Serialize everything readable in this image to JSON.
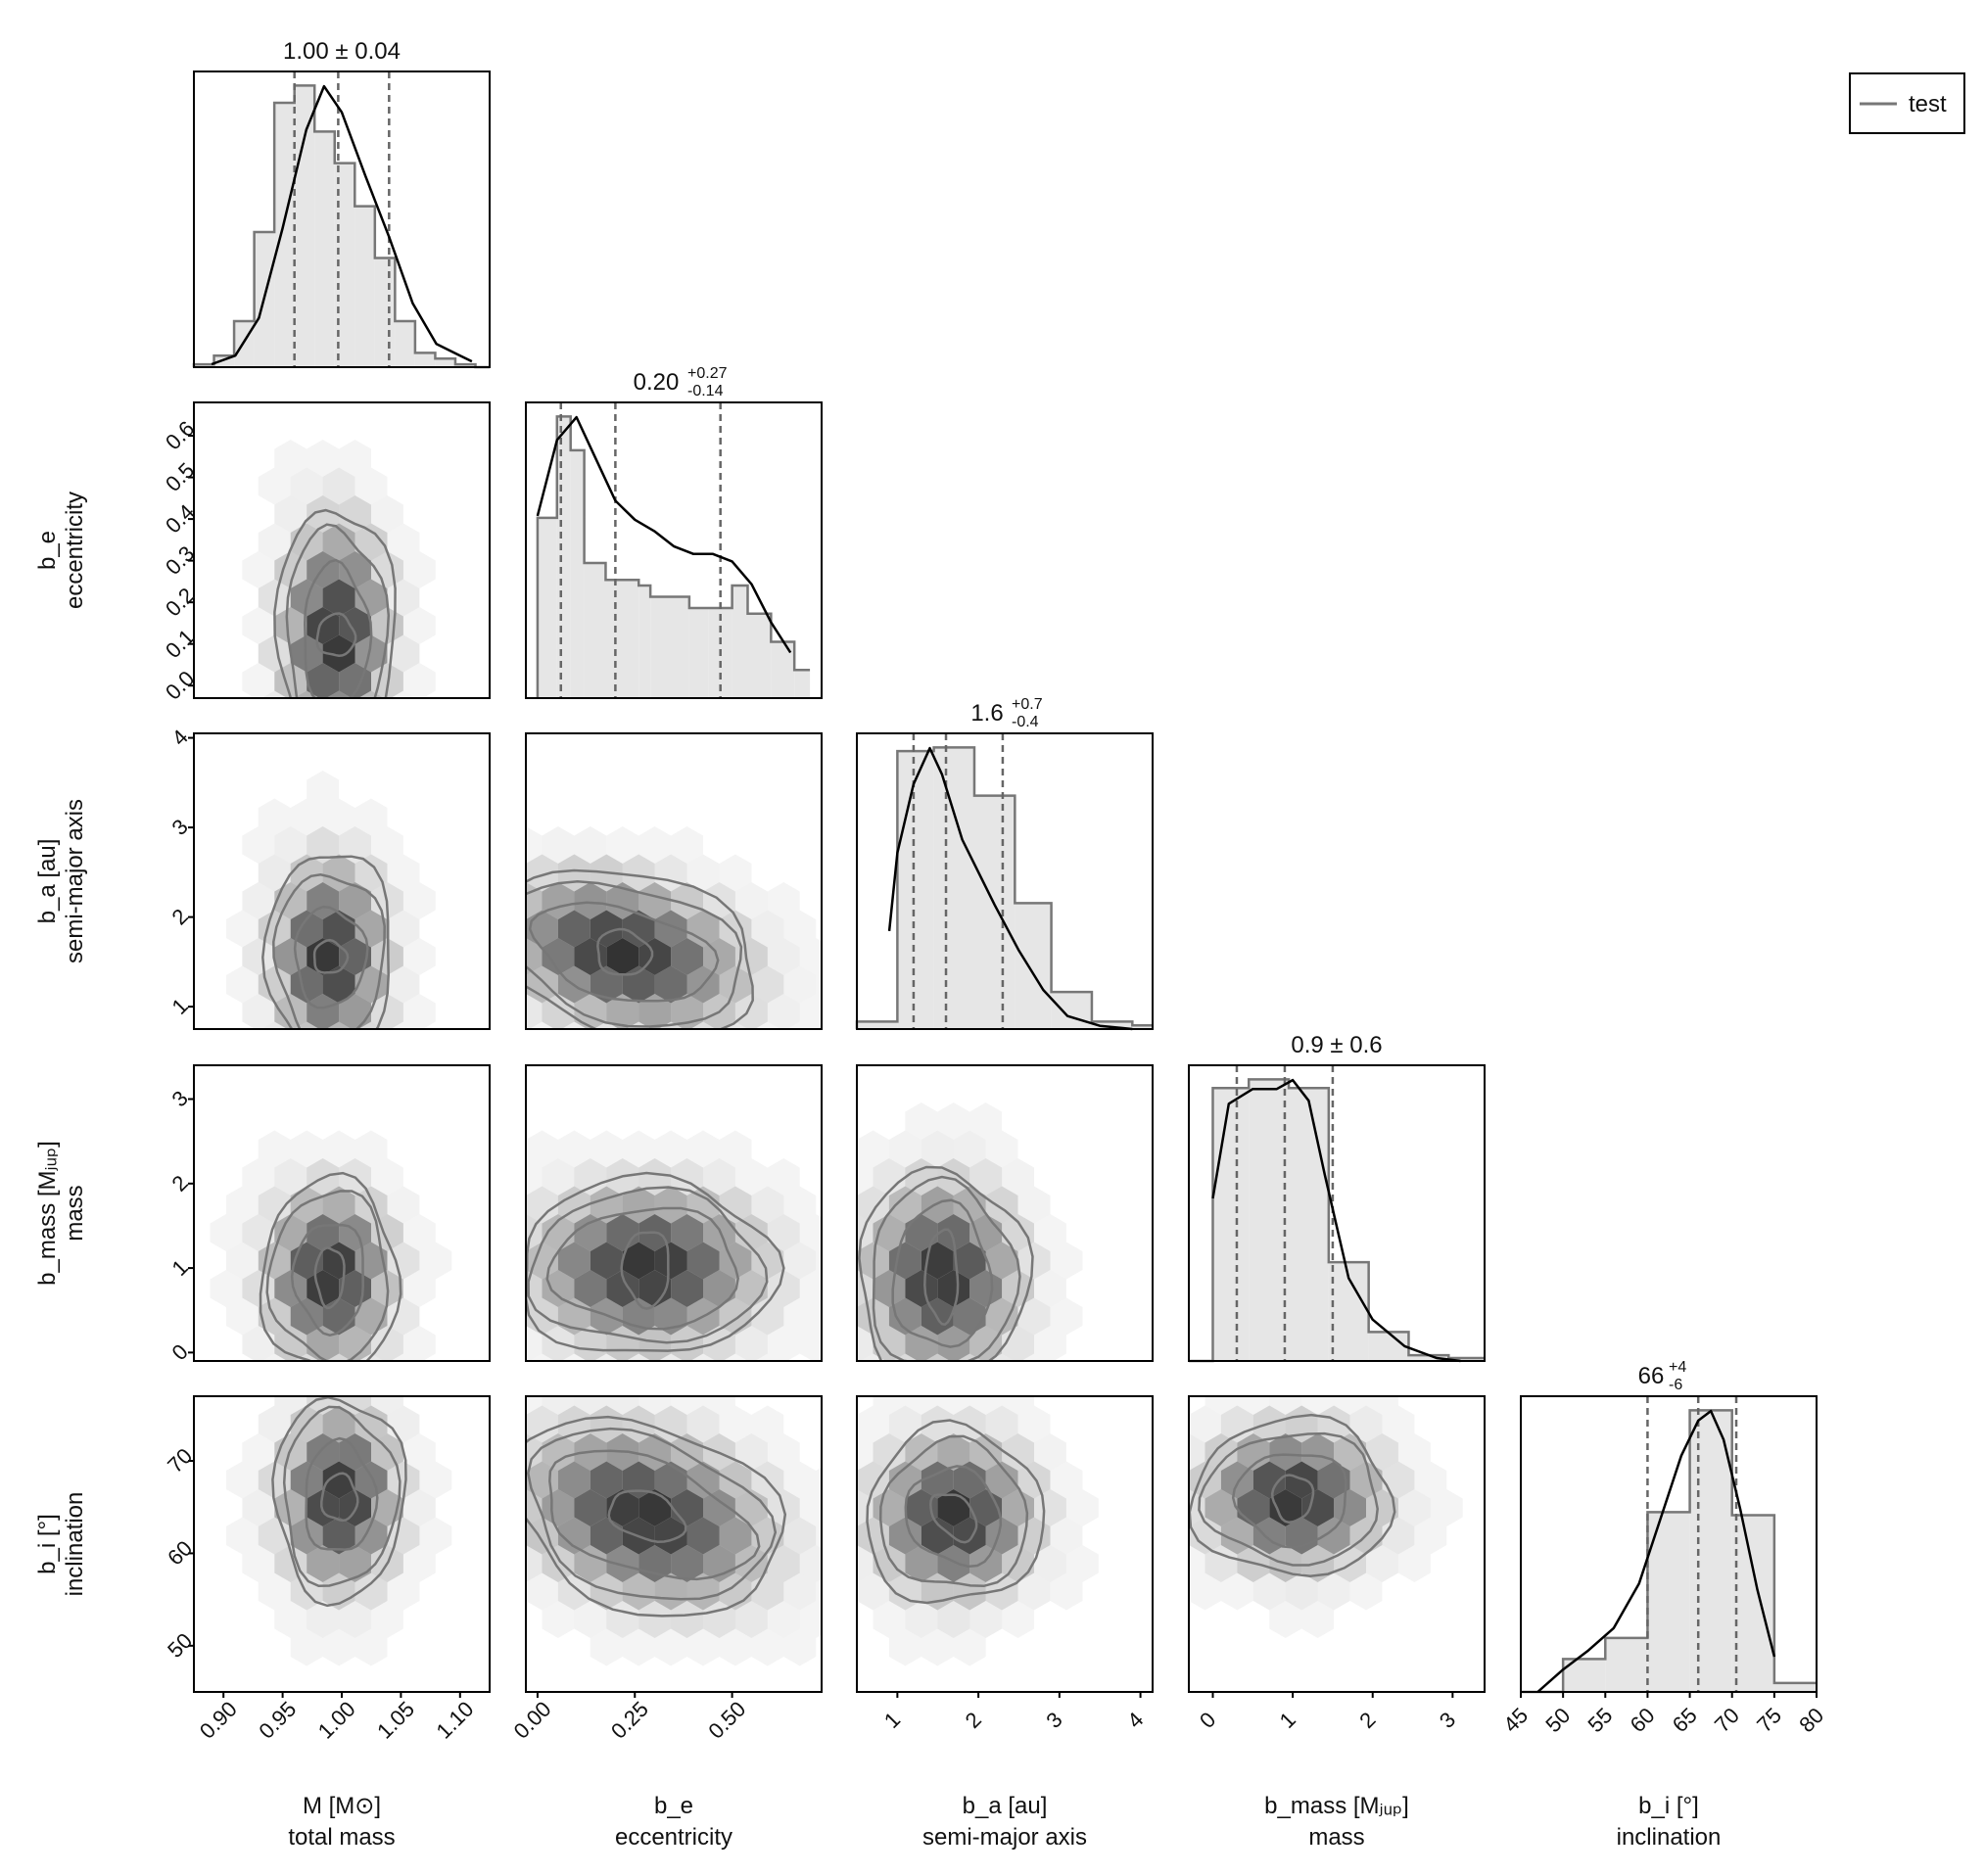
{
  "colors": {
    "hist_fill": "#e6e6e6",
    "hist_step": "#777777",
    "kde": "#000000",
    "quantile": "#666666",
    "contour": "#777777",
    "hex": "#222222",
    "frame": "#000000"
  },
  "legend": {
    "entries": [
      "test"
    ]
  },
  "chart_data": {
    "type": "corner",
    "variables": [
      {
        "key": "M",
        "name": "M [M⊙]",
        "subtitle": "total mass",
        "ylabel": "",
        "xlim": [
          0.875,
          1.125
        ],
        "xticks": [
          0.9,
          0.95,
          1.0,
          1.05,
          1.1
        ],
        "ticklabels": [
          "0.90",
          "0.95",
          "1.00",
          "1.05",
          "1.10"
        ],
        "summary": {
          "value": "1.00",
          "plus": "0.04",
          "minus": "0.04",
          "symmetric": true
        },
        "quantiles": [
          0.96,
          0.997,
          1.04
        ]
      },
      {
        "key": "b_e",
        "name": "b_e",
        "subtitle": "eccentricity",
        "ylabel": "b_e",
        "xlim": [
          -0.03,
          0.73
        ],
        "xticks": [
          0.0,
          0.25,
          0.5
        ],
        "ticklabels": [
          "0.00",
          "0.25",
          "0.50"
        ],
        "yticks": [
          0.0,
          0.1,
          0.2,
          0.3,
          0.4,
          0.5,
          0.6
        ],
        "yticklabels": [
          "0.0",
          "0.1",
          "0.2",
          "0.3",
          "0.4",
          "0.5",
          "0.6"
        ],
        "ylim": [
          -0.03,
          0.68
        ],
        "summary": {
          "value": "0.20",
          "plus": "0.27",
          "minus": "0.14",
          "symmetric": false
        },
        "quantiles": [
          0.06,
          0.2,
          0.47
        ]
      },
      {
        "key": "b_a",
        "name": "b_a [au]",
        "subtitle": "semi-major axis",
        "ylabel": "b_a [au]",
        "xlim": [
          0.5,
          4.15
        ],
        "xticks": [
          1,
          2,
          3,
          4
        ],
        "ticklabels": [
          "1",
          "2",
          "3",
          "4"
        ],
        "yticks": [
          1,
          2,
          3,
          4
        ],
        "yticklabels": [
          "1",
          "2",
          "3",
          "4"
        ],
        "ylim": [
          0.75,
          4.05
        ],
        "summary": {
          "value": "1.6",
          "plus": "0.7",
          "minus": "0.4",
          "symmetric": false
        },
        "quantiles": [
          1.2,
          1.6,
          2.3
        ]
      },
      {
        "key": "b_mass",
        "name": "b_mass [Mⱼᵤₚ]",
        "subtitle": "mass",
        "ylabel": "b_mass [Mⱼᵤₚ]",
        "xlim": [
          -0.3,
          3.4
        ],
        "xticks": [
          0,
          1,
          2,
          3
        ],
        "ticklabels": [
          "0",
          "1",
          "2",
          "3"
        ],
        "yticks": [
          0,
          1,
          2,
          3
        ],
        "yticklabels": [
          "0",
          "1",
          "2",
          "3"
        ],
        "ylim": [
          -0.1,
          3.4
        ],
        "summary": {
          "value": "0.9",
          "plus": "0.6",
          "minus": "0.6",
          "symmetric": true
        },
        "quantiles": [
          0.3,
          0.9,
          1.5
        ]
      },
      {
        "key": "b_i",
        "name": "b_i [°]",
        "subtitle": "inclination",
        "ylabel": "b_i [°]",
        "xlim": [
          45,
          80
        ],
        "xticks": [
          45,
          50,
          55,
          60,
          65,
          70,
          75,
          80
        ],
        "ticklabels": [
          "45",
          "50",
          "55",
          "60",
          "65",
          "70",
          "75",
          "80"
        ],
        "yticks": [
          50,
          60,
          70
        ],
        "yticklabels": [
          "50",
          "60",
          "70"
        ],
        "ylim": [
          45,
          77
        ],
        "summary": {
          "value": "66",
          "plus": "4",
          "minus": "6",
          "symmetric": false
        },
        "quantiles": [
          60,
          66,
          70.5
        ]
      }
    ],
    "histograms": [
      {
        "bins": [
          0.875,
          0.892,
          0.909,
          0.926,
          0.943,
          0.96,
          0.977,
          0.994,
          1.011,
          1.028,
          1.045,
          1.062,
          1.079,
          1.096,
          1.113,
          1.125
        ],
        "counts": [
          1,
          4,
          16,
          47,
          92,
          98,
          82,
          71,
          56,
          38,
          16,
          5,
          3,
          1,
          0
        ],
        "kde_x": [
          0.89,
          0.91,
          0.93,
          0.95,
          0.97,
          0.985,
          1.0,
          1.02,
          1.04,
          1.06,
          1.08,
          1.1,
          1.11
        ],
        "kde_y": [
          1,
          4,
          17,
          48,
          82,
          97,
          88,
          66,
          45,
          22,
          8,
          4,
          2
        ]
      },
      {
        "bins": [
          0.0,
          0.05,
          0.085,
          0.12,
          0.175,
          0.26,
          0.29,
          0.34,
          0.39,
          0.44,
          0.5,
          0.54,
          0.6,
          0.66,
          0.7
        ],
        "counts": [
          64,
          100,
          88,
          48,
          42,
          40,
          36,
          36,
          32,
          32,
          40,
          30,
          20,
          10
        ],
        "kde_x": [
          0.0,
          0.05,
          0.1,
          0.15,
          0.2,
          0.25,
          0.3,
          0.35,
          0.4,
          0.45,
          0.5,
          0.55,
          0.6,
          0.65
        ],
        "kde_y": [
          48,
          68,
          74,
          63,
          52,
          47,
          44,
          40,
          38,
          38,
          36,
          30,
          20,
          12
        ]
      },
      {
        "bins": [
          0.5,
          1.0,
          1.45,
          1.95,
          2.45,
          2.9,
          3.4,
          3.9,
          4.15
        ],
        "counts": [
          2,
          75,
          76,
          63,
          34,
          10,
          2,
          1
        ],
        "kde_x": [
          0.9,
          1.0,
          1.2,
          1.4,
          1.55,
          1.8,
          2.2,
          2.5,
          2.8,
          3.1,
          3.5,
          3.9
        ],
        "kde_y": [
          30,
          54,
          75,
          86,
          78,
          58,
          38,
          24,
          12,
          4,
          1,
          0
        ]
      },
      {
        "bins": [
          -0.3,
          0.0,
          0.45,
          0.95,
          1.45,
          1.95,
          2.45,
          2.95,
          3.4
        ],
        "counts": [
          0,
          94,
          97,
          94,
          34,
          10,
          2,
          1
        ],
        "kde_x": [
          0.0,
          0.2,
          0.5,
          0.8,
          1.0,
          1.2,
          1.4,
          1.7,
          2.0,
          2.4,
          2.8,
          3.1
        ],
        "kde_y": [
          55,
          87,
          92,
          92,
          95,
          88,
          63,
          28,
          14,
          5,
          1,
          0
        ]
      },
      {
        "bins": [
          45,
          50,
          55,
          60,
          65,
          70,
          75,
          80
        ],
        "counts": [
          0,
          11,
          18,
          60,
          94,
          59,
          3
        ],
        "kde_x": [
          47,
          50,
          53,
          56,
          59,
          62,
          64,
          66,
          67.5,
          69,
          71,
          73,
          75
        ],
        "kde_y": [
          0,
          7,
          13,
          20,
          34,
          58,
          74,
          85,
          88,
          79,
          57,
          32,
          11
        ]
      }
    ],
    "pairs": [
      {
        "row": "b_e",
        "col": "M",
        "center": [
          0.995,
          0.12
        ],
        "levels": [
          [
            0.016,
            0.05
          ],
          [
            0.028,
            0.17
          ],
          [
            0.042,
            0.26
          ],
          [
            0.05,
            0.31
          ]
        ]
      },
      {
        "row": "b_a",
        "col": "M",
        "center": [
          0.99,
          1.55
        ],
        "levels": [
          [
            0.014,
            0.18
          ],
          [
            0.03,
            0.55
          ],
          [
            0.046,
            0.95
          ],
          [
            0.053,
            1.2
          ]
        ]
      },
      {
        "row": "b_a",
        "col": "b_e",
        "center": [
          0.22,
          1.6
        ],
        "levels": [
          [
            0.07,
            0.25
          ],
          [
            0.24,
            0.5
          ],
          [
            0.32,
            0.75
          ],
          [
            0.36,
            0.9
          ]
        ]
      },
      {
        "row": "b_mass",
        "col": "M",
        "center": [
          0.99,
          0.9
        ],
        "levels": [
          [
            0.012,
            0.35
          ],
          [
            0.03,
            0.65
          ],
          [
            0.05,
            1.0
          ],
          [
            0.058,
            1.15
          ]
        ]
      },
      {
        "row": "b_mass",
        "col": "b_e",
        "center": [
          0.28,
          1.0
        ],
        "levels": [
          [
            0.06,
            0.45
          ],
          [
            0.24,
            0.7
          ],
          [
            0.3,
            0.9
          ],
          [
            0.33,
            1.05
          ]
        ]
      },
      {
        "row": "b_mass",
        "col": "b_a",
        "center": [
          1.55,
          0.9
        ],
        "levels": [
          [
            0.2,
            0.55
          ],
          [
            0.6,
            0.85
          ],
          [
            0.9,
            1.1
          ],
          [
            1.05,
            1.25
          ]
        ]
      },
      {
        "row": "b_i",
        "col": "M",
        "center": [
          0.998,
          66
        ],
        "levels": [
          [
            0.015,
            2.5
          ],
          [
            0.03,
            6
          ],
          [
            0.048,
            9.5
          ],
          [
            0.055,
            11
          ]
        ]
      },
      {
        "row": "b_i",
        "col": "b_e",
        "center": [
          0.28,
          64
        ],
        "levels": [
          [
            0.1,
            2.5
          ],
          [
            0.28,
            6
          ],
          [
            0.32,
            8.5
          ],
          [
            0.36,
            10
          ]
        ]
      },
      {
        "row": "b_i",
        "col": "b_a",
        "center": [
          1.7,
          64
        ],
        "levels": [
          [
            0.22,
            3
          ],
          [
            0.55,
            5.5
          ],
          [
            0.9,
            8
          ],
          [
            1.1,
            9.5
          ]
        ]
      },
      {
        "row": "b_i",
        "col": "b_mass",
        "center": [
          1.0,
          66
        ],
        "levels": [
          [
            0.25,
            2.5
          ],
          [
            0.7,
            5
          ],
          [
            1.1,
            7
          ],
          [
            1.25,
            8.5
          ]
        ]
      }
    ]
  }
}
